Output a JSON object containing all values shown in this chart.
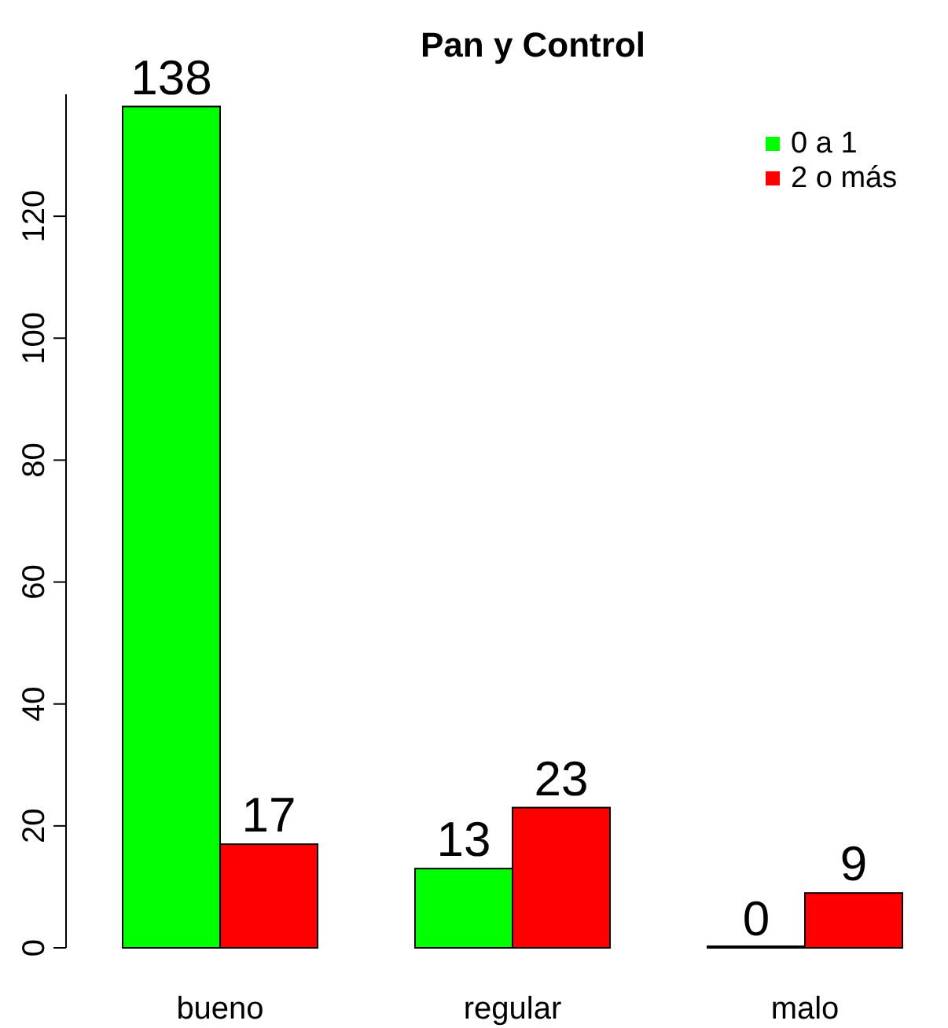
{
  "chart_data": {
    "type": "bar",
    "title": "Pan y Control",
    "categories": [
      "bueno",
      "regular",
      "malo"
    ],
    "series": [
      {
        "name": "0 a 1",
        "color": "#00ff00",
        "values": [
          138,
          13,
          0
        ]
      },
      {
        "name": "2 o más",
        "color": "#ff0000",
        "values": [
          17,
          23,
          9
        ]
      }
    ],
    "ylim": [
      0,
      140
    ],
    "yticks": [
      0,
      20,
      40,
      60,
      80,
      100,
      120
    ],
    "data_labels": true,
    "legend": "top right",
    "grid": false
  }
}
